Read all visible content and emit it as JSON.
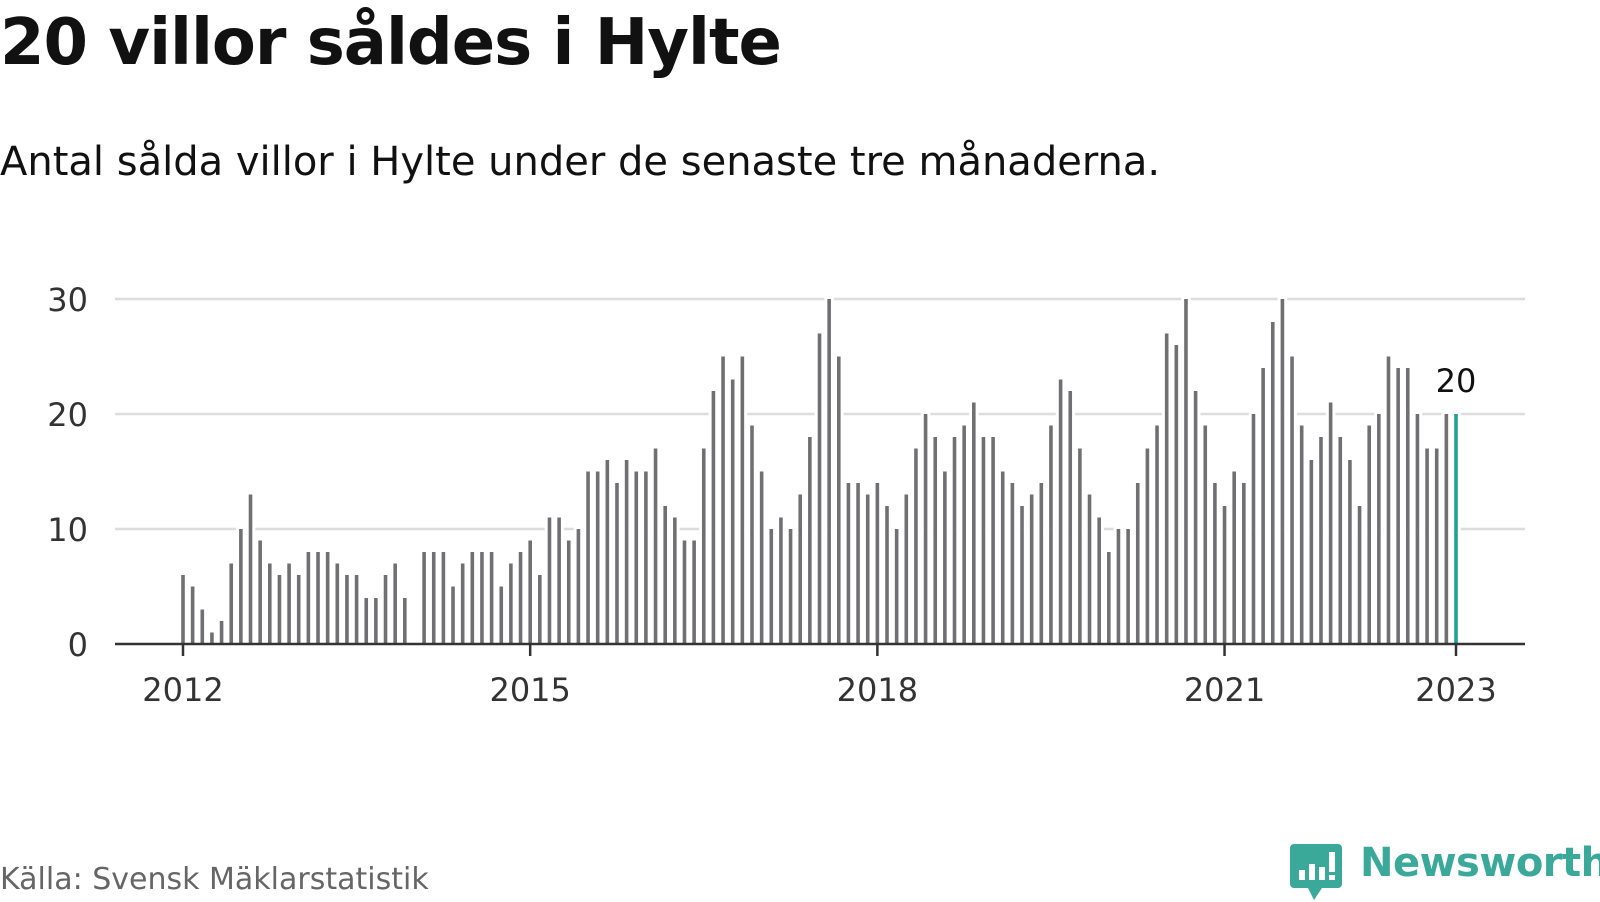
{
  "title": "20 villor såldes i Hylte",
  "subtitle": "Antal sålda villor i Hylte under de senaste tre månaderna.",
  "source": "Källa: Svensk Mäklarstatistik",
  "brand": {
    "name": "Newsworthy",
    "logo_icon": "bar-chart-speech-bubble-icon",
    "color": "#3aa99a"
  },
  "colors": {
    "bar": "#707073",
    "highlight": "#20a391",
    "grid": "#dddddd",
    "axis": "#333333"
  },
  "chart_data": {
    "type": "bar",
    "title": "20 villor såldes i Hylte",
    "subtitle": "Antal sålda villor i Hylte under de senaste tre månaderna.",
    "xlabel": "",
    "ylabel": "",
    "ylim": [
      0,
      30
    ],
    "yticks": [
      0,
      10,
      20,
      30
    ],
    "grid": true,
    "x_start": "2012-01",
    "x_end": "2023-01",
    "xticks": [
      {
        "label": "2012",
        "date": "2012-01"
      },
      {
        "label": "2015",
        "date": "2015-01"
      },
      {
        "label": "2018",
        "date": "2018-01"
      },
      {
        "label": "2021",
        "date": "2021-01"
      },
      {
        "label": "2023",
        "date": "2023-01"
      }
    ],
    "highlight_label": "20",
    "highlight_date": "2023-01",
    "series": [
      {
        "values": [
          {
            "x": "2012-01",
            "y": 6
          },
          {
            "x": "2012-02",
            "y": 5
          },
          {
            "x": "2012-03",
            "y": 3
          },
          {
            "x": "2012-04",
            "y": 1
          },
          {
            "x": "2012-05",
            "y": 2
          },
          {
            "x": "2012-06",
            "y": 7
          },
          {
            "x": "2012-07",
            "y": 10
          },
          {
            "x": "2012-08",
            "y": 13
          },
          {
            "x": "2012-09",
            "y": 9
          },
          {
            "x": "2012-10",
            "y": 7
          },
          {
            "x": "2012-11",
            "y": 6
          },
          {
            "x": "2012-12",
            "y": 7
          },
          {
            "x": "2013-01",
            "y": 6
          },
          {
            "x": "2013-02",
            "y": 8
          },
          {
            "x": "2013-03",
            "y": 8
          },
          {
            "x": "2013-04",
            "y": 8
          },
          {
            "x": "2013-05",
            "y": 7
          },
          {
            "x": "2013-06",
            "y": 6
          },
          {
            "x": "2013-07",
            "y": 6
          },
          {
            "x": "2013-08",
            "y": 4
          },
          {
            "x": "2013-09",
            "y": 4
          },
          {
            "x": "2013-10",
            "y": 6
          },
          {
            "x": "2013-11",
            "y": 7
          },
          {
            "x": "2013-12",
            "y": 4
          },
          {
            "x": "2014-02",
            "y": 8
          },
          {
            "x": "2014-03",
            "y": 8
          },
          {
            "x": "2014-04",
            "y": 8
          },
          {
            "x": "2014-05",
            "y": 5
          },
          {
            "x": "2014-06",
            "y": 7
          },
          {
            "x": "2014-07",
            "y": 8
          },
          {
            "x": "2014-08",
            "y": 8
          },
          {
            "x": "2014-09",
            "y": 8
          },
          {
            "x": "2014-10",
            "y": 5
          },
          {
            "x": "2014-11",
            "y": 7
          },
          {
            "x": "2014-12",
            "y": 8
          },
          {
            "x": "2015-01",
            "y": 9
          },
          {
            "x": "2015-02",
            "y": 6
          },
          {
            "x": "2015-03",
            "y": 11
          },
          {
            "x": "2015-04",
            "y": 11
          },
          {
            "x": "2015-05",
            "y": 9
          },
          {
            "x": "2015-06",
            "y": 10
          },
          {
            "x": "2015-07",
            "y": 15
          },
          {
            "x": "2015-08",
            "y": 15
          },
          {
            "x": "2015-09",
            "y": 16
          },
          {
            "x": "2015-10",
            "y": 14
          },
          {
            "x": "2015-11",
            "y": 16
          },
          {
            "x": "2015-12",
            "y": 15
          },
          {
            "x": "2016-01",
            "y": 15
          },
          {
            "x": "2016-02",
            "y": 17
          },
          {
            "x": "2016-03",
            "y": 12
          },
          {
            "x": "2016-04",
            "y": 11
          },
          {
            "x": "2016-05",
            "y": 9
          },
          {
            "x": "2016-06",
            "y": 9
          },
          {
            "x": "2016-07",
            "y": 17
          },
          {
            "x": "2016-08",
            "y": 22
          },
          {
            "x": "2016-09",
            "y": 25
          },
          {
            "x": "2016-10",
            "y": 23
          },
          {
            "x": "2016-11",
            "y": 25
          },
          {
            "x": "2016-12",
            "y": 19
          },
          {
            "x": "2017-01",
            "y": 15
          },
          {
            "x": "2017-02",
            "y": 10
          },
          {
            "x": "2017-03",
            "y": 11
          },
          {
            "x": "2017-04",
            "y": 10
          },
          {
            "x": "2017-05",
            "y": 13
          },
          {
            "x": "2017-06",
            "y": 18
          },
          {
            "x": "2017-07",
            "y": 27
          },
          {
            "x": "2017-08",
            "y": 30
          },
          {
            "x": "2017-09",
            "y": 25
          },
          {
            "x": "2017-10",
            "y": 14
          },
          {
            "x": "2017-11",
            "y": 14
          },
          {
            "x": "2017-12",
            "y": 13
          },
          {
            "x": "2018-01",
            "y": 14
          },
          {
            "x": "2018-02",
            "y": 12
          },
          {
            "x": "2018-03",
            "y": 10
          },
          {
            "x": "2018-04",
            "y": 13
          },
          {
            "x": "2018-05",
            "y": 17
          },
          {
            "x": "2018-06",
            "y": 20
          },
          {
            "x": "2018-07",
            "y": 18
          },
          {
            "x": "2018-08",
            "y": 15
          },
          {
            "x": "2018-09",
            "y": 18
          },
          {
            "x": "2018-10",
            "y": 19
          },
          {
            "x": "2018-11",
            "y": 21
          },
          {
            "x": "2018-12",
            "y": 18
          },
          {
            "x": "2019-01",
            "y": 18
          },
          {
            "x": "2019-02",
            "y": 15
          },
          {
            "x": "2019-03",
            "y": 14
          },
          {
            "x": "2019-04",
            "y": 12
          },
          {
            "x": "2019-05",
            "y": 13
          },
          {
            "x": "2019-06",
            "y": 14
          },
          {
            "x": "2019-07",
            "y": 19
          },
          {
            "x": "2019-08",
            "y": 23
          },
          {
            "x": "2019-09",
            "y": 22
          },
          {
            "x": "2019-10",
            "y": 17
          },
          {
            "x": "2019-11",
            "y": 13
          },
          {
            "x": "2019-12",
            "y": 11
          },
          {
            "x": "2020-01",
            "y": 8
          },
          {
            "x": "2020-02",
            "y": 10
          },
          {
            "x": "2020-03",
            "y": 10
          },
          {
            "x": "2020-04",
            "y": 14
          },
          {
            "x": "2020-05",
            "y": 17
          },
          {
            "x": "2020-06",
            "y": 19
          },
          {
            "x": "2020-07",
            "y": 27
          },
          {
            "x": "2020-08",
            "y": 26
          },
          {
            "x": "2020-09",
            "y": 30
          },
          {
            "x": "2020-10",
            "y": 22
          },
          {
            "x": "2020-11",
            "y": 19
          },
          {
            "x": "2020-12",
            "y": 14
          },
          {
            "x": "2021-01",
            "y": 12
          },
          {
            "x": "2021-02",
            "y": 15
          },
          {
            "x": "2021-03",
            "y": 14
          },
          {
            "x": "2021-04",
            "y": 20
          },
          {
            "x": "2021-05",
            "y": 24
          },
          {
            "x": "2021-06",
            "y": 28
          },
          {
            "x": "2021-07",
            "y": 30
          },
          {
            "x": "2021-08",
            "y": 25
          },
          {
            "x": "2021-09",
            "y": 19
          },
          {
            "x": "2021-10",
            "y": 16
          },
          {
            "x": "2021-11",
            "y": 18
          },
          {
            "x": "2021-12",
            "y": 21
          },
          {
            "x": "2022-01",
            "y": 18
          },
          {
            "x": "2022-02",
            "y": 16
          },
          {
            "x": "2022-03",
            "y": 12
          },
          {
            "x": "2022-04",
            "y": 19
          },
          {
            "x": "2022-05",
            "y": 20
          },
          {
            "x": "2022-06",
            "y": 25
          },
          {
            "x": "2022-07",
            "y": 24
          },
          {
            "x": "2022-08",
            "y": 24
          },
          {
            "x": "2022-09",
            "y": 20
          },
          {
            "x": "2022-10",
            "y": 17
          },
          {
            "x": "2022-11",
            "y": 17
          },
          {
            "x": "2022-12",
            "y": 20
          },
          {
            "x": "2023-01",
            "y": 20
          }
        ]
      }
    ]
  }
}
